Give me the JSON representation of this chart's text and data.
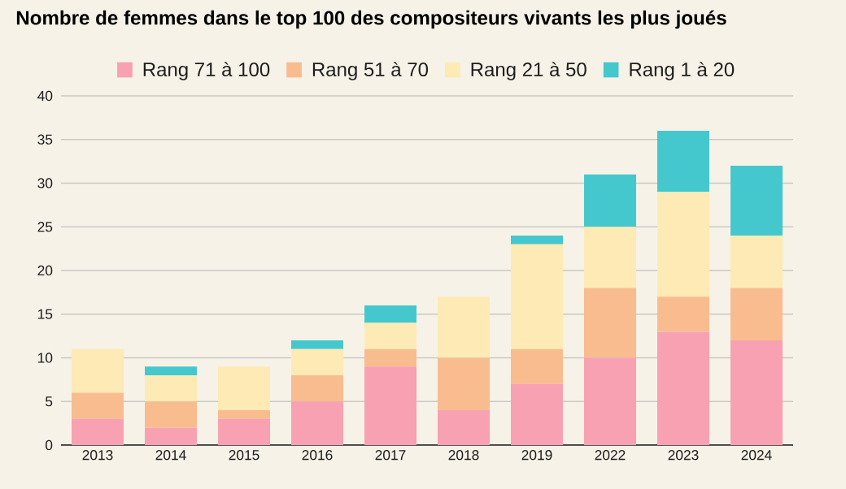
{
  "chart_data": {
    "type": "bar",
    "title": "Nombre de femmes dans le top 100 des compositeurs vivants les plus joués",
    "categories": [
      "2013",
      "2014",
      "2015",
      "2016",
      "2017",
      "2018",
      "2019",
      "2022",
      "2023",
      "2024"
    ],
    "stacked": true,
    "series": [
      {
        "name": "Rang 71 à 100",
        "color": "#f7a1b2",
        "values": [
          3,
          2,
          3,
          5,
          9,
          4,
          7,
          10,
          13,
          12
        ]
      },
      {
        "name": "Rang 51 à 70",
        "color": "#f9bc8f",
        "values": [
          3,
          3,
          1,
          3,
          2,
          6,
          4,
          8,
          4,
          6
        ]
      },
      {
        "name": "Rang 21 à 50",
        "color": "#fdeab5",
        "values": [
          5,
          3,
          5,
          3,
          3,
          7,
          12,
          7,
          12,
          6
        ]
      },
      {
        "name": "Rang 1 à 20",
        "color": "#45c8cd",
        "values": [
          0,
          1,
          0,
          1,
          2,
          0,
          1,
          6,
          7,
          8
        ]
      }
    ],
    "ylim": [
      0,
      40
    ],
    "yticks": [
      0,
      5,
      10,
      15,
      20,
      25,
      30,
      35,
      40
    ],
    "grid": "y",
    "legend": "top"
  }
}
